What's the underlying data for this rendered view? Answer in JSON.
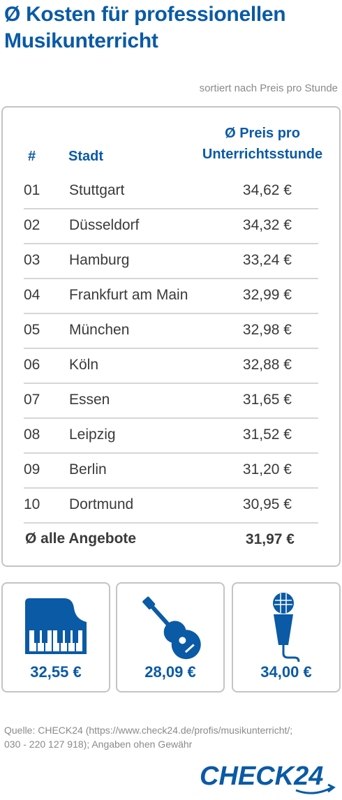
{
  "title": "Ø Kosten für professionellen Musikunterricht",
  "subtitle": "sortiert nach Preis pro Stunde",
  "table": {
    "headers": {
      "num": "#",
      "city": "Stadt",
      "price": "Ø Preis pro Unterrichtsstunde"
    }
  },
  "chart_data": {
    "type": "table",
    "title": "Ø Kosten für professionellen Musikunterricht",
    "subtitle": "sortiert nach Preis pro Stunde",
    "columns": [
      "#",
      "Stadt",
      "Ø Preis pro Unterrichtsstunde"
    ],
    "rows": [
      {
        "rank": "01",
        "city": "Stuttgart",
        "price": "34,62 €",
        "value": 34.62
      },
      {
        "rank": "02",
        "city": "Düsseldorf",
        "price": "34,32 €",
        "value": 34.32
      },
      {
        "rank": "03",
        "city": "Hamburg",
        "price": "33,24 €",
        "value": 33.24
      },
      {
        "rank": "04",
        "city": "Frankfurt am Main",
        "price": "32,99 €",
        "value": 32.99
      },
      {
        "rank": "05",
        "city": "München",
        "price": "32,98 €",
        "value": 32.98
      },
      {
        "rank": "06",
        "city": "Köln",
        "price": "32,88 €",
        "value": 32.88
      },
      {
        "rank": "07",
        "city": "Essen",
        "price": "31,65 €",
        "value": 31.65
      },
      {
        "rank": "08",
        "city": "Leipzig",
        "price": "31,52 €",
        "value": 31.52
      },
      {
        "rank": "09",
        "city": "Berlin",
        "price": "31,20 €",
        "value": 31.2
      },
      {
        "rank": "10",
        "city": "Dortmund",
        "price": "30,95 €",
        "value": 30.95
      }
    ],
    "total": {
      "label": "Ø alle Angebote",
      "price": "31,97 €",
      "value": 31.97
    },
    "instruments": [
      {
        "icon": "piano-icon",
        "price": "32,55 €",
        "value": 32.55
      },
      {
        "icon": "guitar-icon",
        "price": "28,09 €",
        "value": 28.09
      },
      {
        "icon": "microphone-icon",
        "price": "34,00 €",
        "value": 34.0
      }
    ]
  },
  "source": "Quelle: CHECK24 (https://www.check24.de/profis/musikunterricht/; 030 - 220 127 918); Angaben ohen Gewähr",
  "logo": {
    "text": "CHECK24"
  },
  "colors": {
    "accent": "#0a5aa6",
    "text": "#3a3a3a",
    "muted": "#8a8a8a",
    "border": "#c4c4c4"
  }
}
